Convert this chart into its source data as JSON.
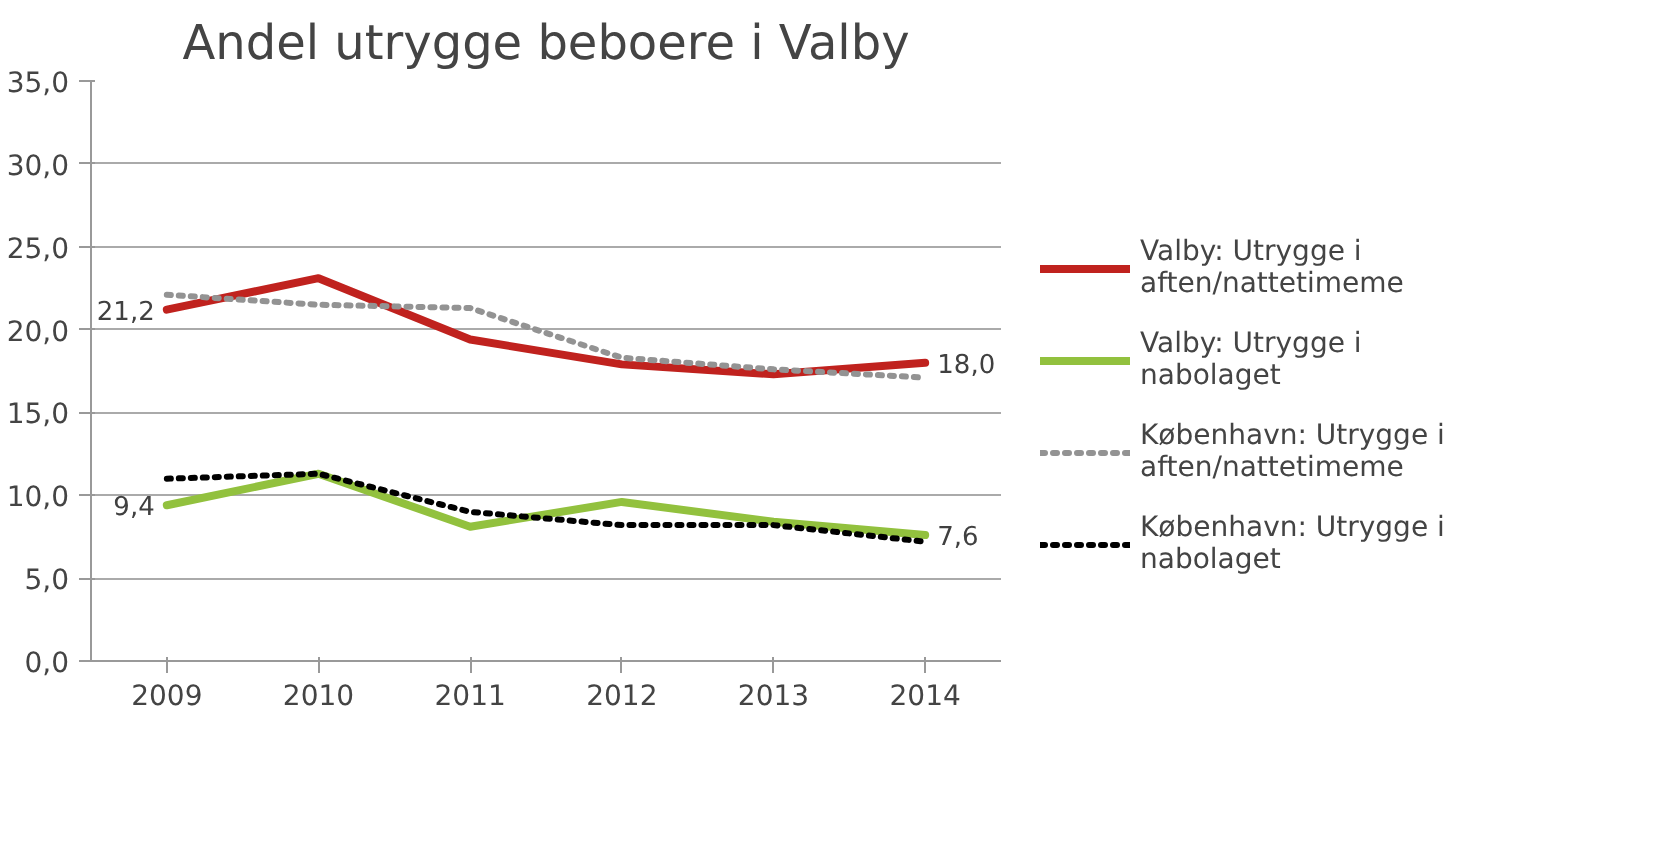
{
  "chart_data": {
    "type": "line",
    "title": "Andel utrygge beboere i Valby",
    "categories": [
      "2009",
      "2010",
      "2011",
      "2012",
      "2013",
      "2014"
    ],
    "series": [
      {
        "name": "Valby: Utrygge i aften/nattetimeme",
        "color": "#c0221e",
        "line_style": "solid",
        "values": [
          21.2,
          23.1,
          19.4,
          17.9,
          17.3,
          18.0
        ],
        "value_labels": [
          "21,2",
          null,
          null,
          null,
          null,
          "18,0"
        ]
      },
      {
        "name": "Valby: Utrygge i nabolaget",
        "color": "#92c13e",
        "line_style": "solid",
        "values": [
          9.4,
          11.3,
          8.1,
          9.6,
          8.4,
          7.6
        ],
        "value_labels": [
          "9,4",
          null,
          null,
          null,
          null,
          "7,6"
        ]
      },
      {
        "name": "København: Utrygge i aften/nattetimeme",
        "color": "#939393",
        "line_style": "dotted",
        "values": [
          22.1,
          21.5,
          21.3,
          18.3,
          17.6,
          17.1
        ]
      },
      {
        "name": "København: Utrygge i nabolaget",
        "color": "#000000",
        "line_style": "dotted",
        "values": [
          11.0,
          11.3,
          9.0,
          8.2,
          8.2,
          7.2
        ]
      }
    ],
    "ylim": [
      0,
      35
    ],
    "yticks": [
      {
        "value": 0,
        "label": "0,0"
      },
      {
        "value": 5,
        "label": "5,0"
      },
      {
        "value": 10,
        "label": "10,0"
      },
      {
        "value": 15,
        "label": "15,0"
      },
      {
        "value": 20,
        "label": "20,0"
      },
      {
        "value": 25,
        "label": "25,0"
      },
      {
        "value": 30,
        "label": "30,0"
      },
      {
        "value": 35,
        "label": "35,0"
      }
    ],
    "grid": "y",
    "legend": "right",
    "marker": "none"
  }
}
